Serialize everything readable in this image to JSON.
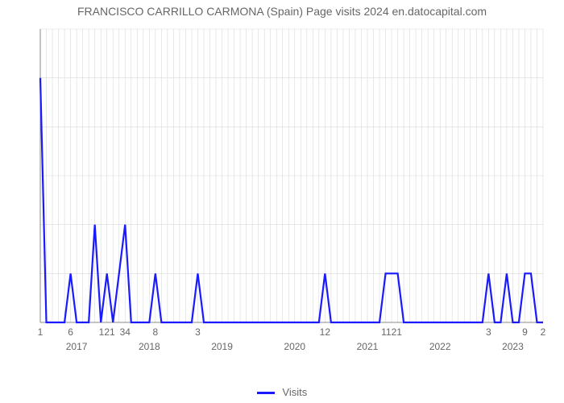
{
  "title": "FRANCISCO CARRILLO CARMONA (Spain) Page visits 2024 en.datocapital.com",
  "chart": {
    "type": "line",
    "series_name": "Visits",
    "line_color": "#1a1aff",
    "line_width": 2.2,
    "background_color": "#ffffff",
    "grid_color": "#d9d9d9",
    "grid_width": 0.6,
    "axis_color": "#888888",
    "text_color": "#666666",
    "title_fontsize": 14,
    "tick_fontsize": 12,
    "legend_fontsize": 13,
    "y": {
      "min": 0,
      "max": 6,
      "ticks": [
        0,
        1,
        2,
        3,
        4,
        5,
        6
      ]
    },
    "x_months_count": 84,
    "x_month_ticks": [
      {
        "idx": 0,
        "label": "1"
      },
      {
        "idx": 5,
        "label": "6"
      },
      {
        "idx": 11,
        "label": "121"
      },
      {
        "idx": 14,
        "label": "34"
      },
      {
        "idx": 19,
        "label": "8"
      },
      {
        "idx": 26,
        "label": "3"
      },
      {
        "idx": 47,
        "label": "12"
      },
      {
        "idx": 58,
        "label": "1121"
      },
      {
        "idx": 74,
        "label": "3"
      },
      {
        "idx": 80,
        "label": "9"
      },
      {
        "idx": 83,
        "label": "2"
      }
    ],
    "x_year_ticks": [
      {
        "idx": 6,
        "label": "2017"
      },
      {
        "idx": 18,
        "label": "2018"
      },
      {
        "idx": 30,
        "label": "2019"
      },
      {
        "idx": 42,
        "label": "2020"
      },
      {
        "idx": 54,
        "label": "2021"
      },
      {
        "idx": 66,
        "label": "2022"
      },
      {
        "idx": 78,
        "label": "2023"
      }
    ],
    "values": [
      5,
      0,
      0,
      0,
      0,
      1,
      0,
      0,
      0,
      2,
      0,
      1,
      0,
      1,
      2,
      0,
      0,
      0,
      0,
      1,
      0,
      0,
      0,
      0,
      0,
      0,
      1,
      0,
      0,
      0,
      0,
      0,
      0,
      0,
      0,
      0,
      0,
      0,
      0,
      0,
      0,
      0,
      0,
      0,
      0,
      0,
      0,
      1,
      0,
      0,
      0,
      0,
      0,
      0,
      0,
      0,
      0,
      1,
      1,
      1,
      0,
      0,
      0,
      0,
      0,
      0,
      0,
      0,
      0,
      0,
      0,
      0,
      0,
      0,
      1,
      0,
      0,
      1,
      0,
      0,
      1,
      1,
      0,
      0
    ]
  }
}
